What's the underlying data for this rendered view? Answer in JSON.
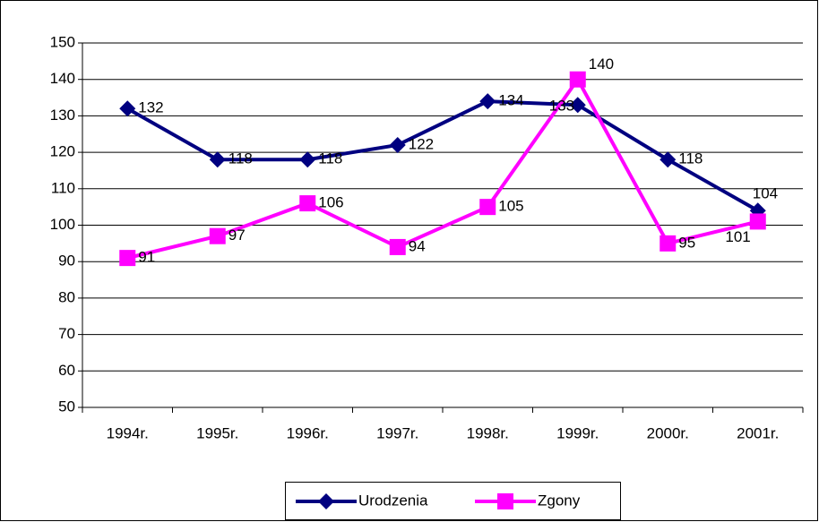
{
  "chart_data": {
    "type": "line",
    "categories": [
      "1994r.",
      "1995r.",
      "1996r.",
      "1997r.",
      "1998r.",
      "1999r.",
      "2000r.",
      "2001r."
    ],
    "series": [
      {
        "name": "Urodzenia",
        "color": "#000080",
        "marker": "diamond",
        "values": [
          132,
          118,
          118,
          122,
          134,
          133,
          118,
          104
        ]
      },
      {
        "name": "Zgony",
        "color": "#ff00ff",
        "marker": "square",
        "values": [
          91,
          97,
          106,
          94,
          105,
          140,
          95,
          101
        ]
      }
    ],
    "ylim": [
      50,
      150
    ],
    "yticks": [
      50,
      60,
      70,
      80,
      90,
      100,
      110,
      120,
      130,
      140,
      150
    ],
    "grid": true,
    "legend": "bottom"
  }
}
